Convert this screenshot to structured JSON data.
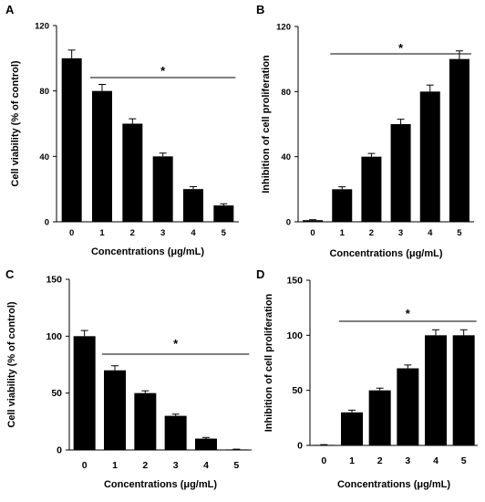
{
  "chart_data": [
    {
      "panel": "A",
      "type": "bar",
      "categories": [
        "0",
        "1",
        "2",
        "3",
        "4",
        "5"
      ],
      "values": [
        100,
        80,
        60,
        40,
        20,
        10
      ],
      "errors": [
        5,
        4,
        3,
        2,
        1.5,
        1
      ],
      "xlabel": "Concentrations (μg/mL)",
      "ylabel": "Cell viability (% of control)",
      "ylim": [
        0,
        120
      ],
      "yticks": [
        "0",
        "40",
        "80",
        "120"
      ],
      "significance": {
        "from": "1",
        "to": "5",
        "label": "*"
      }
    },
    {
      "panel": "B",
      "type": "bar",
      "categories": [
        "0",
        "1",
        "2",
        "3",
        "4",
        "5"
      ],
      "values": [
        1,
        20,
        40,
        60,
        80,
        100
      ],
      "errors": [
        0.3,
        1.5,
        2,
        3,
        4,
        5
      ],
      "xlabel": "Concentrations (μg/mL)",
      "ylabel": "Inhibition of cell proliferation",
      "ylim": [
        0,
        120
      ],
      "yticks": [
        "0",
        "40",
        "80",
        "120"
      ],
      "significance": {
        "from": "1",
        "to": "5",
        "label": "*"
      }
    },
    {
      "panel": "C",
      "type": "bar",
      "categories": [
        "0",
        "1",
        "2",
        "3",
        "4",
        "5"
      ],
      "values": [
        100,
        70,
        50,
        30,
        10,
        0.5
      ],
      "errors": [
        5,
        4,
        2,
        1.5,
        1,
        0.2
      ],
      "xlabel": "Concentrations (μg/mL)",
      "ylabel": "Cell viability (% of control)",
      "ylim": [
        0,
        150
      ],
      "yticks": [
        "0",
        "50",
        "100",
        "150"
      ],
      "significance": {
        "from": "1",
        "to": "5",
        "label": "*"
      }
    },
    {
      "panel": "D",
      "type": "bar",
      "categories": [
        "0",
        "1",
        "2",
        "3",
        "4",
        "5"
      ],
      "values": [
        0.5,
        30,
        50,
        70,
        100,
        100
      ],
      "errors": [
        0.2,
        2,
        2,
        3,
        5,
        5
      ],
      "xlabel": "Concentrations (μg/mL)",
      "ylabel": "Inhibition of cell proliferation",
      "ylim": [
        0,
        150
      ],
      "yticks": [
        "0",
        "50",
        "100",
        "150"
      ],
      "significance": {
        "from": "1",
        "to": "5",
        "label": "*"
      }
    }
  ]
}
